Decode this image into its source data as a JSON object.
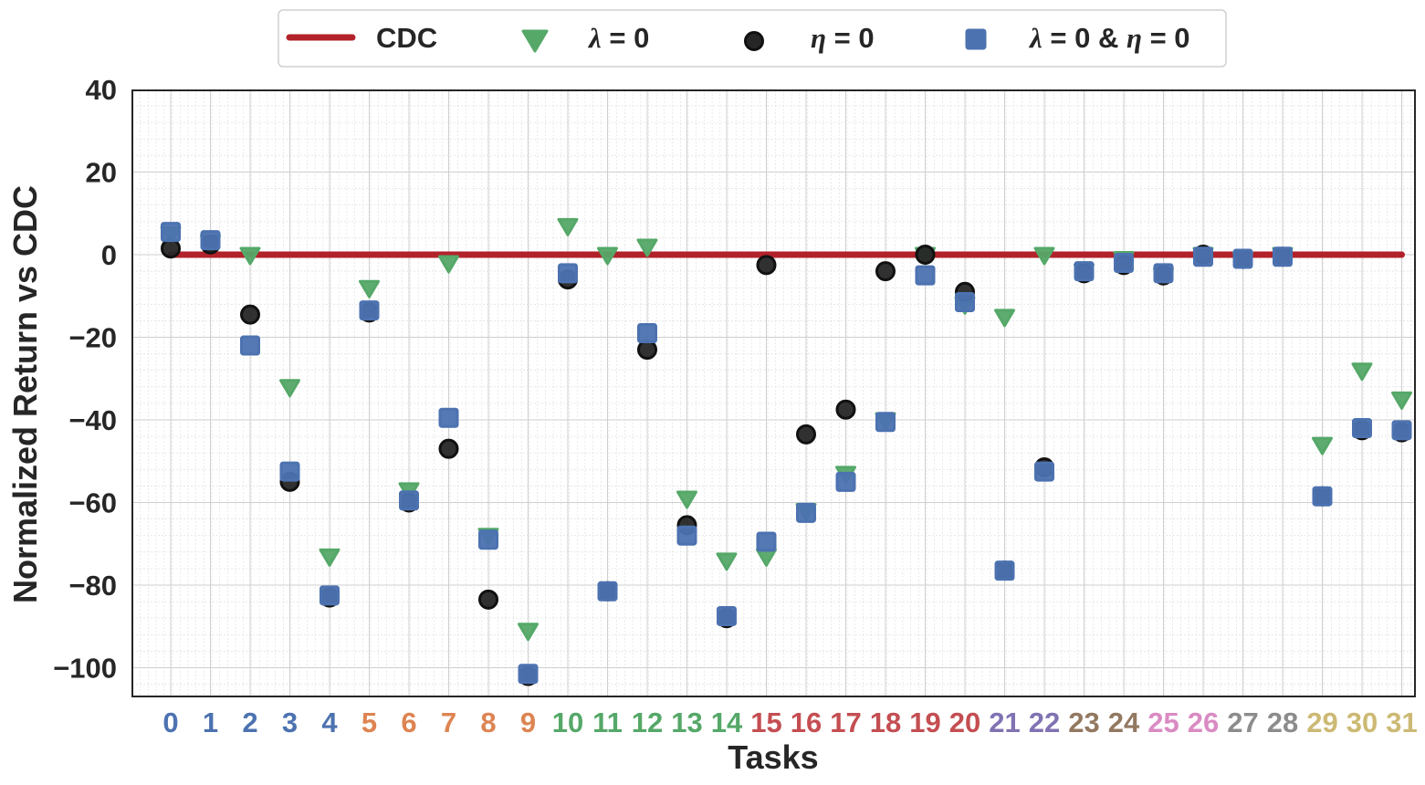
{
  "chart_data": {
    "type": "scatter",
    "title": "",
    "xlabel": "Tasks",
    "ylabel": "Normalized Return vs CDC",
    "ylim": [
      -107,
      40
    ],
    "yticks": [
      40,
      20,
      0,
      -20,
      -40,
      -60,
      -80,
      -100
    ],
    "ytick_labels": [
      "40",
      "20",
      "0",
      "−20",
      "−40",
      "−60",
      "−80",
      "−100"
    ],
    "grid": true,
    "legend_position": "top-center",
    "categories": [
      "0",
      "1",
      "2",
      "3",
      "4",
      "5",
      "6",
      "7",
      "8",
      "9",
      "10",
      "11",
      "12",
      "13",
      "14",
      "15",
      "16",
      "17",
      "18",
      "19",
      "20",
      "21",
      "22",
      "23",
      "24",
      "25",
      "26",
      "27",
      "28",
      "29",
      "30",
      "31"
    ],
    "category_colors": [
      "#4c72b0",
      "#4c72b0",
      "#4c72b0",
      "#4c72b0",
      "#4c72b0",
      "#dd8452",
      "#dd8452",
      "#dd8452",
      "#dd8452",
      "#dd8452",
      "#55a868",
      "#55a868",
      "#55a868",
      "#55a868",
      "#55a868",
      "#c44e52",
      "#c44e52",
      "#c44e52",
      "#c44e52",
      "#c44e52",
      "#c44e52",
      "#8172b3",
      "#8172b3",
      "#937860",
      "#937860",
      "#da8bc3",
      "#da8bc3",
      "#8c8c8c",
      "#8c8c8c",
      "#ccb974",
      "#ccb974",
      "#ccb974"
    ],
    "series": [
      {
        "name": "CDC",
        "marker": "line",
        "color": "#b2222a",
        "values": [
          0,
          0,
          0,
          0,
          0,
          0,
          0,
          0,
          0,
          0,
          0,
          0,
          0,
          0,
          0,
          0,
          0,
          0,
          0,
          0,
          0,
          0,
          0,
          0,
          0,
          0,
          0,
          0,
          0,
          0,
          0,
          0
        ]
      },
      {
        "name": "λ = 0",
        "marker": "triangle-down",
        "color": "#55a868",
        "values": [
          5,
          3,
          0,
          -32,
          -73,
          -8,
          -57,
          -2,
          -68,
          -91,
          7,
          0,
          2,
          -59,
          -74,
          -73,
          -62,
          -53,
          -40,
          0,
          -12,
          -15,
          0,
          -4,
          -1,
          -5,
          0,
          -1,
          0,
          -46,
          -28,
          -35
        ]
      },
      {
        "name": "η = 0",
        "marker": "circle",
        "color": "#262626",
        "values": [
          1.5,
          2.5,
          -14.5,
          -55,
          -83,
          -14,
          -60,
          -47,
          -83.5,
          -102,
          -6,
          -81.5,
          -23,
          -65.5,
          -88,
          -2.5,
          -43.5,
          -37.5,
          -4,
          0,
          -9,
          -76.5,
          -51.5,
          -4.5,
          -2.5,
          -5,
          0,
          -1,
          -0.5,
          -58.5,
          -42.5,
          -43
        ]
      },
      {
        "name": "λ = 0 & η = 0",
        "marker": "square",
        "color": "#4c72b0",
        "values": [
          5.5,
          3.5,
          -22,
          -52.5,
          -82.5,
          -13.5,
          -59.5,
          -39.5,
          -69,
          -101.5,
          -4.5,
          -81.5,
          -19,
          -68,
          -87.5,
          -69.5,
          -62.5,
          -55,
          -40.5,
          -5,
          -11.5,
          -76.5,
          -52.5,
          -4,
          -2,
          -4.5,
          -0.5,
          -1,
          -0.5,
          -58.5,
          -42,
          -42.5
        ]
      }
    ]
  },
  "legend": {
    "cdc_label": "CDC",
    "lambda_symbol": "λ",
    "lambda_suffix": " = 0",
    "eta_symbol": "η",
    "eta_suffix": " = 0",
    "both_lambda_symbol": "λ",
    "both_middle": " = 0 & ",
    "both_eta_symbol": "η",
    "both_suffix": " = 0"
  },
  "colors": {
    "axis_frame": "#262626",
    "minor_grid": "#dcdcdc",
    "major_grid": "#cfcfcf"
  }
}
